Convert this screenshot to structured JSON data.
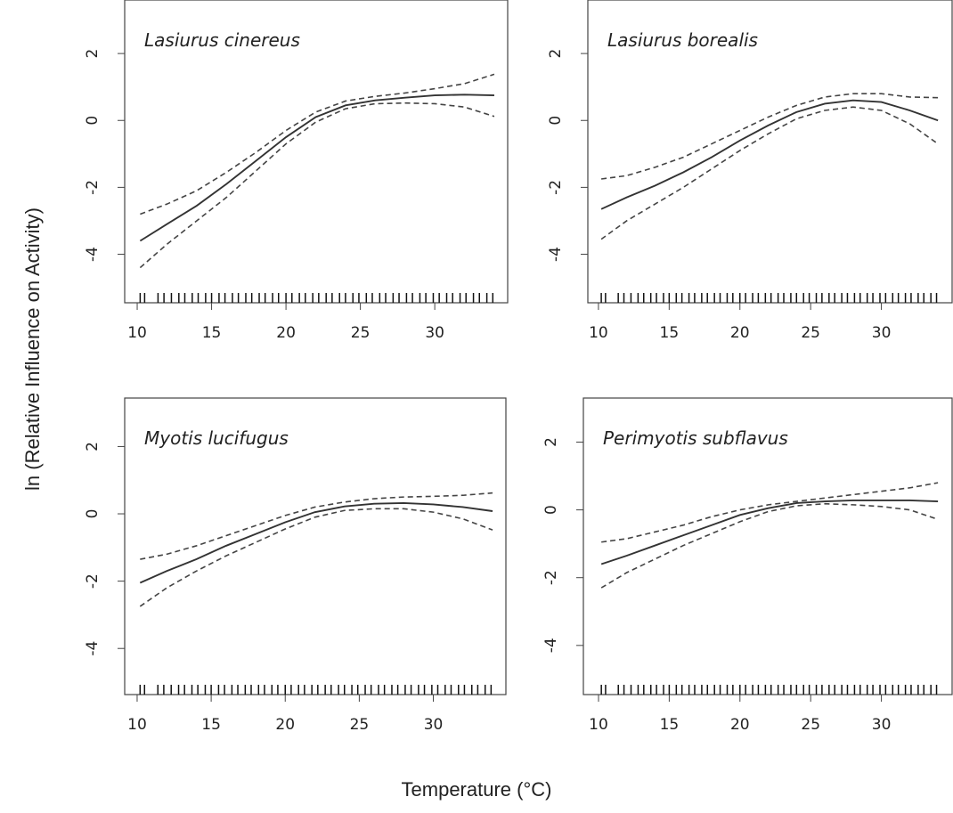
{
  "ylabel": "ln (Relative Influence on Activity)",
  "xlabel": "Temperature (°C)",
  "chart_data": [
    {
      "type": "line",
      "title": "Lasiurus cinereus",
      "xlim": [
        9.16,
        34.9
      ],
      "ylim": [
        -5.45,
        3.6
      ],
      "xticks": [
        10,
        15,
        20,
        25,
        30
      ],
      "yticks": [
        -4,
        -2,
        0,
        2
      ],
      "x": [
        10.2,
        12,
        14,
        16,
        18,
        20,
        22,
        24,
        26,
        28,
        30,
        32,
        34
      ],
      "series": [
        {
          "color": "#333333",
          "dash": false,
          "values": [
            -3.6,
            -3.1,
            -2.55,
            -1.9,
            -1.2,
            -0.5,
            0.1,
            0.45,
            0.6,
            0.68,
            0.75,
            0.77,
            0.75
          ]
        },
        {
          "color": "#444444",
          "dash": true,
          "values": [
            -2.8,
            -2.5,
            -2.1,
            -1.55,
            -0.95,
            -0.3,
            0.25,
            0.58,
            0.72,
            0.82,
            0.95,
            1.1,
            1.38
          ]
        },
        {
          "color": "#444444",
          "dash": true,
          "values": [
            -4.4,
            -3.7,
            -3.0,
            -2.3,
            -1.5,
            -0.7,
            -0.05,
            0.35,
            0.5,
            0.52,
            0.5,
            0.4,
            0.12
          ]
        }
      ],
      "rug": [
        10.2,
        10.5,
        11.4,
        11.8,
        12.3,
        12.8,
        13.2,
        13.7,
        14.1,
        14.6,
        15,
        15.5,
        15.9,
        16.4,
        16.8,
        17.3,
        17.7,
        18.2,
        18.6,
        19.1,
        19.5,
        20,
        20.4,
        20.9,
        21.3,
        21.8,
        22.2,
        22.7,
        23.1,
        23.6,
        24,
        24.5,
        24.9,
        25.4,
        25.8,
        26.3,
        26.7,
        27.2,
        27.6,
        28.1,
        28.5,
        29,
        29.4,
        29.9,
        30.3,
        30.8,
        31.2,
        31.7,
        32.1,
        32.6,
        33,
        33.5,
        33.9
      ]
    },
    {
      "type": "line",
      "title": "Lasiurus borealis",
      "xlim": [
        9.25,
        35.0
      ],
      "ylim": [
        -5.45,
        3.6
      ],
      "xticks": [
        10,
        15,
        20,
        25,
        30
      ],
      "yticks": [
        -4,
        -2,
        0,
        2
      ],
      "x": [
        10.2,
        12,
        14,
        16,
        18,
        20,
        22,
        24,
        26,
        28,
        30,
        32,
        34
      ],
      "series": [
        {
          "color": "#333333",
          "dash": false,
          "values": [
            -2.65,
            -2.3,
            -1.95,
            -1.55,
            -1.1,
            -0.6,
            -0.15,
            0.25,
            0.5,
            0.6,
            0.55,
            0.3,
            0.0
          ]
        },
        {
          "color": "#444444",
          "dash": true,
          "values": [
            -1.75,
            -1.65,
            -1.4,
            -1.1,
            -0.7,
            -0.3,
            0.1,
            0.45,
            0.7,
            0.8,
            0.8,
            0.7,
            0.68
          ]
        },
        {
          "color": "#444444",
          "dash": true,
          "values": [
            -3.55,
            -3.0,
            -2.5,
            -2.0,
            -1.45,
            -0.9,
            -0.4,
            0.05,
            0.3,
            0.4,
            0.3,
            -0.1,
            -0.7
          ]
        }
      ],
      "rug": [
        10.2,
        10.5,
        11.4,
        11.8,
        12.3,
        12.8,
        13.2,
        13.7,
        14.1,
        14.6,
        15,
        15.5,
        15.9,
        16.4,
        16.8,
        17.3,
        17.7,
        18.2,
        18.6,
        19.1,
        19.5,
        20,
        20.4,
        20.9,
        21.3,
        21.8,
        22.2,
        22.7,
        23.1,
        23.6,
        24,
        24.5,
        24.9,
        25.4,
        25.8,
        26.3,
        26.7,
        27.2,
        27.6,
        28.1,
        28.5,
        29,
        29.4,
        29.9,
        30.3,
        30.8,
        31.2,
        31.7,
        32.1,
        32.6,
        33,
        33.5,
        33.9
      ]
    },
    {
      "type": "line",
      "title": "Myotis lucifugus",
      "xlim": [
        9.16,
        34.9
      ],
      "ylim": [
        -5.37,
        3.44
      ],
      "xticks": [
        10,
        15,
        20,
        25,
        30
      ],
      "yticks": [
        -4,
        -2,
        0,
        2
      ],
      "x": [
        10.2,
        12,
        14,
        16,
        18,
        20,
        22,
        24,
        26,
        28,
        30,
        32,
        34
      ],
      "series": [
        {
          "color": "#333333",
          "dash": false,
          "values": [
            -2.05,
            -1.7,
            -1.35,
            -0.95,
            -0.6,
            -0.25,
            0.05,
            0.22,
            0.3,
            0.32,
            0.28,
            0.2,
            0.08
          ]
        },
        {
          "color": "#444444",
          "dash": true,
          "values": [
            -1.35,
            -1.2,
            -0.95,
            -0.65,
            -0.35,
            -0.05,
            0.2,
            0.35,
            0.45,
            0.5,
            0.52,
            0.55,
            0.62
          ]
        },
        {
          "color": "#444444",
          "dash": true,
          "values": [
            -2.75,
            -2.2,
            -1.7,
            -1.25,
            -0.85,
            -0.45,
            -0.1,
            0.1,
            0.15,
            0.15,
            0.05,
            -0.15,
            -0.48
          ]
        }
      ],
      "rug": [
        10.2,
        10.5,
        11.4,
        11.8,
        12.3,
        12.8,
        13.2,
        13.7,
        14.1,
        14.6,
        15,
        15.5,
        15.9,
        16.4,
        16.8,
        17.3,
        17.7,
        18.2,
        18.6,
        19.1,
        19.5,
        20,
        20.4,
        20.9,
        21.3,
        21.8,
        22.2,
        22.7,
        23.1,
        23.6,
        24,
        24.5,
        24.9,
        25.4,
        25.8,
        26.3,
        26.7,
        27.2,
        27.6,
        28.1,
        28.5,
        29,
        29.4,
        29.9,
        30.3,
        30.8,
        31.2,
        31.7,
        32.1,
        32.6,
        33,
        33.5,
        33.9
      ]
    },
    {
      "type": "line",
      "title": "Perimyotis subflavus",
      "xlim": [
        8.93,
        35.0
      ],
      "ylim": [
        -5.45,
        3.3
      ],
      "xticks": [
        10,
        15,
        20,
        25,
        30
      ],
      "yticks": [
        -4,
        -2,
        0,
        2
      ],
      "x": [
        10.2,
        12,
        14,
        16,
        18,
        20,
        22,
        24,
        26,
        28,
        30,
        32,
        34
      ],
      "series": [
        {
          "color": "#333333",
          "dash": false,
          "values": [
            -1.6,
            -1.35,
            -1.05,
            -0.75,
            -0.45,
            -0.15,
            0.05,
            0.2,
            0.25,
            0.28,
            0.28,
            0.28,
            0.25
          ]
        },
        {
          "color": "#444444",
          "dash": true,
          "values": [
            -0.95,
            -0.85,
            -0.65,
            -0.45,
            -0.2,
            0.0,
            0.15,
            0.25,
            0.35,
            0.45,
            0.55,
            0.65,
            0.8
          ]
        },
        {
          "color": "#444444",
          "dash": true,
          "values": [
            -2.3,
            -1.85,
            -1.45,
            -1.05,
            -0.7,
            -0.35,
            -0.05,
            0.12,
            0.18,
            0.15,
            0.1,
            0.0,
            -0.28
          ]
        }
      ],
      "rug": [
        10.2,
        10.5,
        11.4,
        11.8,
        12.3,
        12.8,
        13.2,
        13.7,
        14.1,
        14.6,
        15,
        15.5,
        15.9,
        16.4,
        16.8,
        17.3,
        17.7,
        18.2,
        18.6,
        19.1,
        19.5,
        20,
        20.4,
        20.9,
        21.3,
        21.8,
        22.2,
        22.7,
        23.1,
        23.6,
        24,
        24.5,
        24.9,
        25.4,
        25.8,
        26.3,
        26.7,
        27.2,
        27.6,
        28.1,
        28.5,
        29,
        29.4,
        29.9,
        30.3,
        30.8,
        31.2,
        31.7,
        32.1,
        32.6,
        33,
        33.5,
        33.9
      ]
    }
  ]
}
